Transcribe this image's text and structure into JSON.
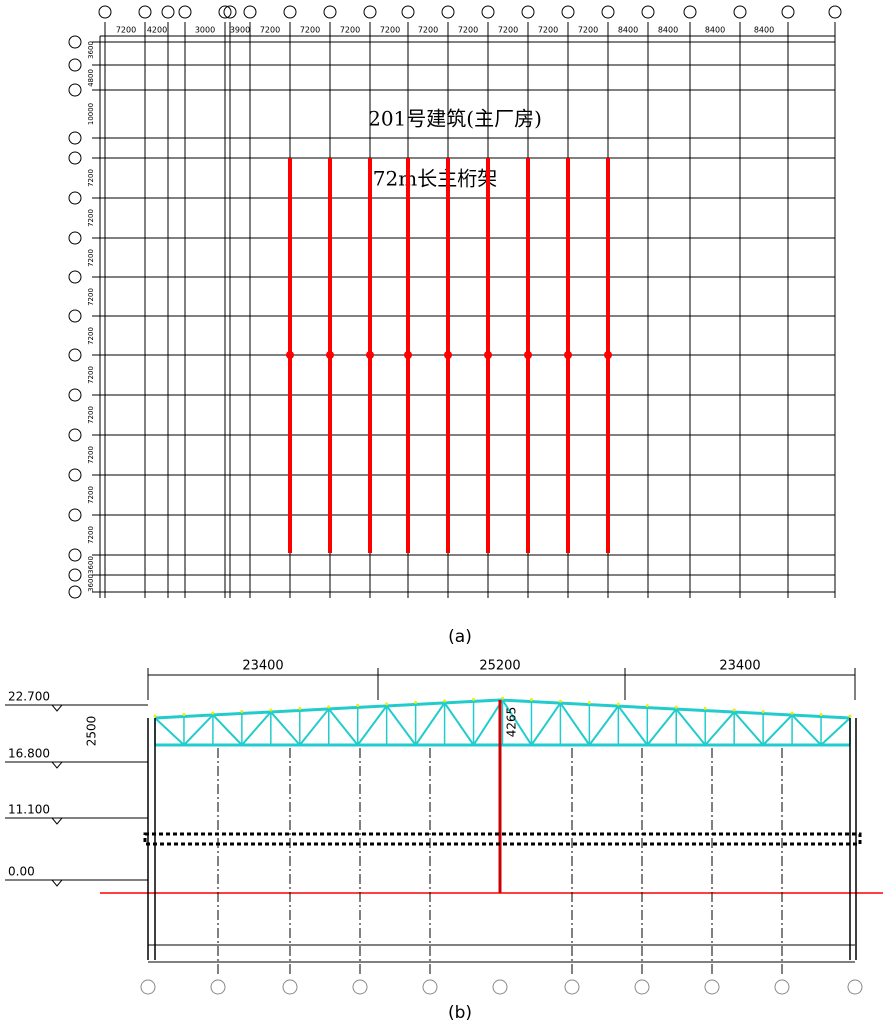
{
  "figure_a": {
    "title": "201号建筑(主厂房)",
    "subtitle": "72m长主桁架",
    "caption": "(a)",
    "top_dims": [
      "7200",
      "4200",
      "3000",
      "3900",
      "7200",
      "7200",
      "7200",
      "7200",
      "7200",
      "7200",
      "7200",
      "7200",
      "7200",
      "8400",
      "8400",
      "8400",
      "8400"
    ],
    "side_dims": [
      "3600",
      "4800",
      "10000",
      "7200",
      "7200",
      "7200",
      "7200",
      "7200",
      "7200",
      "7200",
      "7200",
      "7200",
      "7200",
      "3600",
      "3600"
    ]
  },
  "figure_b": {
    "span_dims": [
      "23400",
      "25200",
      "23400"
    ],
    "levels": [
      "22.700",
      "16.800",
      "11.100",
      "0.00"
    ],
    "truss_depth": "2500",
    "ridge_height": "4265",
    "caption": "(b)"
  }
}
